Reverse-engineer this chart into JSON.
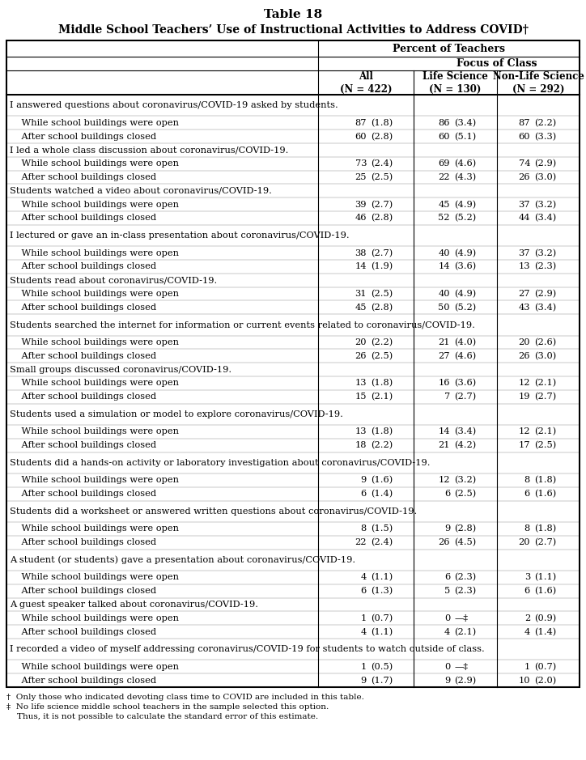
{
  "title_line1": "Table 18",
  "title_line2": "Middle School Teachers’ Use of Instructional Activities to Address COVID†",
  "footnote1": "†  Only those who indicated devoting class time to COVID are included in this table.",
  "footnote2": "‡  No life science middle school teachers in the sample selected this option. Thus, it is not possible to calculate the standard error of this estimate.",
  "rows": [
    {
      "label": "I answered questions about coronavirus/COVID-19 asked by students.",
      "all": "",
      "ls": "",
      "nls": "",
      "type": "header",
      "wrap": true
    },
    {
      "label": "    While school buildings were open",
      "all_n": "87",
      "all_se": "(1.8)",
      "ls_n": "86",
      "ls_se": "(3.4)",
      "nls_n": "87",
      "nls_se": "(2.2)",
      "type": "data"
    },
    {
      "label": "    After school buildings closed",
      "all_n": "60",
      "all_se": "(2.8)",
      "ls_n": "60",
      "ls_se": "(5.1)",
      "nls_n": "60",
      "nls_se": "(3.3)",
      "type": "data"
    },
    {
      "label": "I led a whole class discussion about coronavirus/COVID-19.",
      "all": "",
      "ls": "",
      "nls": "",
      "type": "header",
      "wrap": false
    },
    {
      "label": "    While school buildings were open",
      "all_n": "73",
      "all_se": "(2.4)",
      "ls_n": "69",
      "ls_se": "(4.6)",
      "nls_n": "74",
      "nls_se": "(2.9)",
      "type": "data"
    },
    {
      "label": "    After school buildings closed",
      "all_n": "25",
      "all_se": "(2.5)",
      "ls_n": "22",
      "ls_se": "(4.3)",
      "nls_n": "26",
      "nls_se": "(3.0)",
      "type": "data"
    },
    {
      "label": "Students watched a video about coronavirus/COVID-19.",
      "all": "",
      "ls": "",
      "nls": "",
      "type": "header",
      "wrap": false
    },
    {
      "label": "    While school buildings were open",
      "all_n": "39",
      "all_se": "(2.7)",
      "ls_n": "45",
      "ls_se": "(4.9)",
      "nls_n": "37",
      "nls_se": "(3.2)",
      "type": "data"
    },
    {
      "label": "    After school buildings closed",
      "all_n": "46",
      "all_se": "(2.8)",
      "ls_n": "52",
      "ls_se": "(5.2)",
      "nls_n": "44",
      "nls_se": "(3.4)",
      "type": "data"
    },
    {
      "label": "I lectured or gave an in-class presentation about coronavirus/COVID-19.",
      "all": "",
      "ls": "",
      "nls": "",
      "type": "header",
      "wrap": true
    },
    {
      "label": "    While school buildings were open",
      "all_n": "38",
      "all_se": "(2.7)",
      "ls_n": "40",
      "ls_se": "(4.9)",
      "nls_n": "37",
      "nls_se": "(3.2)",
      "type": "data"
    },
    {
      "label": "    After school buildings closed",
      "all_n": "14",
      "all_se": "(1.9)",
      "ls_n": "14",
      "ls_se": "(3.6)",
      "nls_n": "13",
      "nls_se": "(2.3)",
      "type": "data"
    },
    {
      "label": "Students read about coronavirus/COVID-19.",
      "all": "",
      "ls": "",
      "nls": "",
      "type": "header",
      "wrap": false
    },
    {
      "label": "    While school buildings were open",
      "all_n": "31",
      "all_se": "(2.5)",
      "ls_n": "40",
      "ls_se": "(4.9)",
      "nls_n": "27",
      "nls_se": "(2.9)",
      "type": "data"
    },
    {
      "label": "    After school buildings closed",
      "all_n": "45",
      "all_se": "(2.8)",
      "ls_n": "50",
      "ls_se": "(5.2)",
      "nls_n": "43",
      "nls_se": "(3.4)",
      "type": "data"
    },
    {
      "label": "Students searched the internet for information or current events related to coronavirus/COVID-19.",
      "all": "",
      "ls": "",
      "nls": "",
      "type": "header",
      "wrap": true
    },
    {
      "label": "    While school buildings were open",
      "all_n": "20",
      "all_se": "(2.2)",
      "ls_n": "21",
      "ls_se": "(4.0)",
      "nls_n": "20",
      "nls_se": "(2.6)",
      "type": "data"
    },
    {
      "label": "    After school buildings closed",
      "all_n": "26",
      "all_se": "(2.5)",
      "ls_n": "27",
      "ls_se": "(4.6)",
      "nls_n": "26",
      "nls_se": "(3.0)",
      "type": "data"
    },
    {
      "label": "Small groups discussed coronavirus/COVID-19.",
      "all": "",
      "ls": "",
      "nls": "",
      "type": "header",
      "wrap": false
    },
    {
      "label": "    While school buildings were open",
      "all_n": "13",
      "all_se": "(1.8)",
      "ls_n": "16",
      "ls_se": "(3.6)",
      "nls_n": "12",
      "nls_se": "(2.1)",
      "type": "data"
    },
    {
      "label": "    After school buildings closed",
      "all_n": "15",
      "all_se": "(2.1)",
      "ls_n": "7",
      "ls_se": "(2.7)",
      "nls_n": "19",
      "nls_se": "(2.7)",
      "type": "data"
    },
    {
      "label": "Students used a simulation or model to explore coronavirus/COVID-19.",
      "all": "",
      "ls": "",
      "nls": "",
      "type": "header",
      "wrap": true
    },
    {
      "label": "    While school buildings were open",
      "all_n": "13",
      "all_se": "(1.8)",
      "ls_n": "14",
      "ls_se": "(3.4)",
      "nls_n": "12",
      "nls_se": "(2.1)",
      "type": "data"
    },
    {
      "label": "    After school buildings closed",
      "all_n": "18",
      "all_se": "(2.2)",
      "ls_n": "21",
      "ls_se": "(4.2)",
      "nls_n": "17",
      "nls_se": "(2.5)",
      "type": "data"
    },
    {
      "label": "Students did a hands-on activity or laboratory investigation about coronavirus/COVID-19.",
      "all": "",
      "ls": "",
      "nls": "",
      "type": "header",
      "wrap": true
    },
    {
      "label": "    While school buildings were open",
      "all_n": "9",
      "all_se": "(1.6)",
      "ls_n": "12",
      "ls_se": "(3.2)",
      "nls_n": "8",
      "nls_se": "(1.8)",
      "type": "data"
    },
    {
      "label": "    After school buildings closed",
      "all_n": "6",
      "all_se": "(1.4)",
      "ls_n": "6",
      "ls_se": "(2.5)",
      "nls_n": "6",
      "nls_se": "(1.6)",
      "type": "data"
    },
    {
      "label": "Students did a worksheet or answered written questions about coronavirus/COVID-19.",
      "all": "",
      "ls": "",
      "nls": "",
      "type": "header",
      "wrap": true
    },
    {
      "label": "    While school buildings were open",
      "all_n": "8",
      "all_se": "(1.5)",
      "ls_n": "9",
      "ls_se": "(2.8)",
      "nls_n": "8",
      "nls_se": "(1.8)",
      "type": "data"
    },
    {
      "label": "    After school buildings closed",
      "all_n": "22",
      "all_se": "(2.4)",
      "ls_n": "26",
      "ls_se": "(4.5)",
      "nls_n": "20",
      "nls_se": "(2.7)",
      "type": "data"
    },
    {
      "label": "A student (or students) gave a presentation about coronavirus/COVID-19.",
      "all": "",
      "ls": "",
      "nls": "",
      "type": "header",
      "wrap": true
    },
    {
      "label": "    While school buildings were open",
      "all_n": "4",
      "all_se": "(1.1)",
      "ls_n": "6",
      "ls_se": "(2.3)",
      "nls_n": "3",
      "nls_se": "(1.1)",
      "type": "data"
    },
    {
      "label": "    After school buildings closed",
      "all_n": "6",
      "all_se": "(1.3)",
      "ls_n": "5",
      "ls_se": "(2.3)",
      "nls_n": "6",
      "nls_se": "(1.6)",
      "type": "data"
    },
    {
      "label": "A guest speaker talked about coronavirus/COVID-19.",
      "all": "",
      "ls": "",
      "nls": "",
      "type": "header",
      "wrap": false
    },
    {
      "label": "    While school buildings were open",
      "all_n": "1",
      "all_se": "(0.7)",
      "ls_n": "0",
      "ls_se": "—‡",
      "nls_n": "2",
      "nls_se": "(0.9)",
      "type": "data"
    },
    {
      "label": "    After school buildings closed",
      "all_n": "4",
      "all_se": "(1.1)",
      "ls_n": "4",
      "ls_se": "(2.1)",
      "nls_n": "4",
      "nls_se": "(1.4)",
      "type": "data"
    },
    {
      "label": "I recorded a video of myself addressing coronavirus/COVID-19 for students to watch outside of class.",
      "all": "",
      "ls": "",
      "nls": "",
      "type": "header",
      "wrap": true
    },
    {
      "label": "    While school buildings were open",
      "all_n": "1",
      "all_se": "(0.5)",
      "ls_n": "0",
      "ls_se": "—‡",
      "nls_n": "1",
      "nls_se": "(0.7)",
      "type": "data"
    },
    {
      "label": "    After school buildings closed",
      "all_n": "9",
      "all_se": "(1.7)",
      "ls_n": "9",
      "ls_se": "(2.9)",
      "nls_n": "10",
      "nls_se": "(2.0)",
      "type": "data"
    }
  ]
}
